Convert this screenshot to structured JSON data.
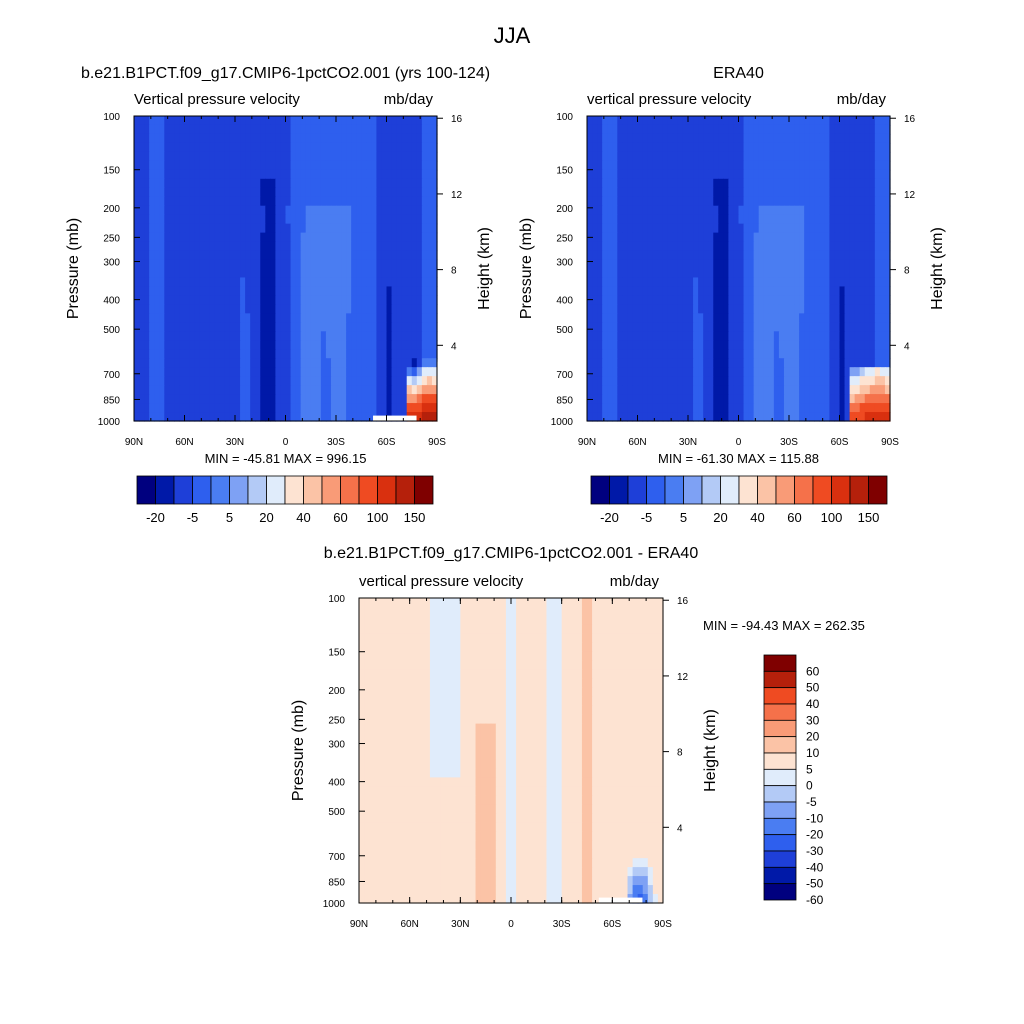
{
  "figure": {
    "title": "JJA"
  },
  "chart_data": [
    {
      "type": "heatmap",
      "id": "model",
      "title": "b.e21.B1PCT.f09_g17.CMIP6-1pctCO2.001 (yrs 100-124)",
      "left_label": "Vertical pressure velocity",
      "right_label": "mb/day",
      "xlabel": "",
      "ylabel": "Pressure (mb)",
      "y2label": "Height (km)",
      "x_ticks": [
        "90N",
        "60N",
        "30N",
        "0",
        "30S",
        "60S",
        "90S"
      ],
      "y_ticks": [
        100,
        150,
        200,
        250,
        300,
        400,
        500,
        700,
        850,
        1000
      ],
      "y_log": true,
      "y2_ticks": [
        4,
        8,
        12,
        16
      ],
      "stats": "MIN = -45.81  MAX = 996.15",
      "levels": [
        -30,
        -20,
        -10,
        -5,
        0,
        5,
        10,
        20,
        30,
        40,
        50,
        60,
        80,
        100,
        120,
        150
      ],
      "colorbar_labels": [
        "-20",
        "-5",
        "5",
        "20",
        "40",
        "60",
        "100",
        "150"
      ],
      "colorbar_orientation": "horizontal"
    },
    {
      "type": "heatmap",
      "id": "obs",
      "title": "ERA40",
      "left_label": "vertical pressure velocity",
      "right_label": "mb/day",
      "xlabel": "",
      "ylabel": "Pressure (mb)",
      "y2label": "Height (km)",
      "x_ticks": [
        "90N",
        "60N",
        "30N",
        "0",
        "30S",
        "60S",
        "90S"
      ],
      "y_ticks": [
        100,
        150,
        200,
        250,
        300,
        400,
        500,
        700,
        850,
        1000
      ],
      "y_log": true,
      "y2_ticks": [
        4,
        8,
        12,
        16
      ],
      "stats": "MIN = -61.30  MAX = 115.88",
      "levels": [
        -30,
        -20,
        -10,
        -5,
        0,
        5,
        10,
        20,
        30,
        40,
        50,
        60,
        80,
        100,
        120,
        150
      ],
      "colorbar_labels": [
        "-20",
        "-5",
        "5",
        "20",
        "40",
        "60",
        "100",
        "150"
      ],
      "colorbar_orientation": "horizontal"
    },
    {
      "type": "heatmap",
      "id": "diff",
      "title": "b.e21.B1PCT.f09_g17.CMIP6-1pctCO2.001 - ERA40",
      "left_label": "vertical pressure velocity",
      "right_label": "mb/day",
      "xlabel": "",
      "ylabel": "Pressure (mb)",
      "y2label": "Height (km)",
      "x_ticks": [
        "90N",
        "60N",
        "30N",
        "0",
        "30S",
        "60S",
        "90S"
      ],
      "y_ticks": [
        100,
        150,
        200,
        250,
        300,
        400,
        500,
        700,
        850,
        1000
      ],
      "y_log": true,
      "y2_ticks": [
        4,
        8,
        12,
        16
      ],
      "stats": "MIN = -94.43  MAX = 262.35",
      "levels": [
        -60,
        -50,
        -40,
        -30,
        -20,
        -10,
        -5,
        0,
        5,
        10,
        20,
        30,
        40,
        50,
        60
      ],
      "colorbar_labels": [
        "60",
        "50",
        "40",
        "30",
        "20",
        "10",
        "5",
        "0",
        "-5",
        "-10",
        "-20",
        "-30",
        "-40",
        "-50",
        "-60"
      ],
      "colorbar_orientation": "vertical"
    }
  ],
  "palettes": {
    "full": [
      "#00007f",
      "#0019a8",
      "#1e3fd8",
      "#2e5fee",
      "#4a7df2",
      "#7ea1f4",
      "#b3caf6",
      "#e0ecfb",
      "#fde3d2",
      "#fbc3a6",
      "#f99b77",
      "#f5714a",
      "#ef4b22",
      "#d9300f",
      "#b5200b",
      "#7f0000"
    ],
    "diff": [
      "#00007f",
      "#0019a8",
      "#1e3fd8",
      "#2e5fee",
      "#4a7df2",
      "#7ea1f4",
      "#b3caf6",
      "#e0ecfb",
      "#fde3d2",
      "#fbc3a6",
      "#f99b77",
      "#f5714a",
      "#ef4b22",
      "#b5200b",
      "#7f0000"
    ]
  }
}
